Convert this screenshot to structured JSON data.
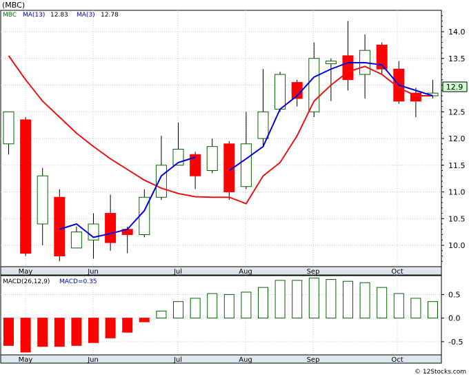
{
  "chart_data": [
    {
      "type": "candlestick",
      "ticker": "MBC",
      "header": {
        "symbol_label": "(MBC)",
        "series_labels": [
          {
            "name": "MBC",
            "color": "#008000"
          },
          {
            "name": "MA(13)",
            "color": "#0000cc",
            "value": "12.83"
          },
          {
            "name": "MA(3)",
            "color": "#0000cc",
            "value": "12.78"
          }
        ]
      },
      "last_price_label": "12.9",
      "ylim": [
        9.6,
        14.4
      ],
      "yticks": [
        "14.0",
        "13.5",
        "13.0",
        "12.5",
        "12.0",
        "11.5",
        "11.0",
        "10.5",
        "10.0"
      ],
      "month_labels": [
        "May",
        "Jun",
        "Jul",
        "Aug",
        "Sep",
        "Oct"
      ],
      "candles": [
        {
          "o": 11.9,
          "h": 12.5,
          "l": 11.7,
          "c": 12.5
        },
        {
          "o": 12.35,
          "h": 12.4,
          "l": 9.8,
          "c": 9.85
        },
        {
          "o": 10.4,
          "h": 11.45,
          "l": 10.0,
          "c": 11.3
        },
        {
          "o": 10.9,
          "h": 11.05,
          "l": 9.7,
          "c": 9.8
        },
        {
          "o": 9.95,
          "h": 10.35,
          "l": 9.95,
          "c": 10.25
        },
        {
          "o": 10.1,
          "h": 10.6,
          "l": 9.75,
          "c": 10.4
        },
        {
          "o": 10.6,
          "h": 10.95,
          "l": 9.9,
          "c": 10.05
        },
        {
          "o": 10.3,
          "h": 10.35,
          "l": 9.85,
          "c": 10.2
        },
        {
          "o": 10.2,
          "h": 11.05,
          "l": 10.15,
          "c": 10.9
        },
        {
          "o": 10.9,
          "h": 12.05,
          "l": 10.85,
          "c": 11.5
        },
        {
          "o": 11.5,
          "h": 12.3,
          "l": 11.5,
          "c": 11.8
        },
        {
          "o": 11.7,
          "h": 11.75,
          "l": 11.05,
          "c": 11.3
        },
        {
          "o": 11.4,
          "h": 12.0,
          "l": 11.35,
          "c": 11.85
        },
        {
          "o": 11.9,
          "h": 11.95,
          "l": 10.85,
          "c": 11.0
        },
        {
          "o": 11.1,
          "h": 12.5,
          "l": 11.05,
          "c": 11.9
        },
        {
          "o": 12.0,
          "h": 13.3,
          "l": 11.85,
          "c": 12.5
        },
        {
          "o": 12.55,
          "h": 13.25,
          "l": 12.5,
          "c": 13.2
        },
        {
          "o": 13.05,
          "h": 13.1,
          "l": 12.6,
          "c": 12.75
        },
        {
          "o": 12.5,
          "h": 13.8,
          "l": 12.4,
          "c": 13.5
        },
        {
          "o": 13.4,
          "h": 13.5,
          "l": 12.7,
          "c": 13.45
        },
        {
          "o": 13.55,
          "h": 14.2,
          "l": 12.9,
          "c": 13.1
        },
        {
          "o": 13.2,
          "h": 13.95,
          "l": 12.75,
          "c": 13.65
        },
        {
          "o": 13.75,
          "h": 13.8,
          "l": 13.2,
          "c": 13.3
        },
        {
          "o": 13.3,
          "h": 13.45,
          "l": 12.65,
          "c": 12.7
        },
        {
          "o": 12.85,
          "h": 12.95,
          "l": 12.4,
          "c": 12.7
        },
        {
          "o": 12.8,
          "h": 13.1,
          "l": 12.75,
          "c": 12.85
        }
      ],
      "ma_red": [
        13.55,
        13.1,
        12.7,
        12.4,
        12.1,
        11.85,
        11.62,
        11.42,
        11.22,
        11.07,
        10.97,
        10.91,
        10.9,
        10.9,
        10.78,
        11.3,
        11.55,
        12.05,
        12.7,
        13.0,
        13.25,
        13.35,
        13.2,
        12.95,
        12.8,
        12.8
      ],
      "ma_blue": [
        null,
        null,
        null,
        10.3,
        10.4,
        10.15,
        10.22,
        10.3,
        10.65,
        11.3,
        11.55,
        11.65,
        null,
        11.4,
        11.62,
        11.85,
        12.55,
        12.8,
        13.15,
        13.3,
        13.42,
        13.42,
        13.38,
        13.0,
        12.9,
        12.8
      ]
    },
    {
      "type": "bar",
      "title": "MACD(26,12,9)",
      "value_label": "MACD=0.35",
      "ylim": [
        -0.78,
        0.9
      ],
      "yticks": [
        "0.5",
        "0.0",
        "-0.5"
      ],
      "values": [
        -0.58,
        -0.72,
        -0.6,
        -0.6,
        -0.58,
        -0.52,
        -0.42,
        -0.3,
        -0.08,
        0.15,
        0.35,
        0.42,
        0.52,
        0.5,
        0.55,
        0.65,
        0.8,
        0.8,
        0.85,
        0.82,
        0.78,
        0.75,
        0.65,
        0.52,
        0.42,
        0.35
      ]
    }
  ],
  "footer": {
    "credit": "© 12Stocks.com"
  }
}
